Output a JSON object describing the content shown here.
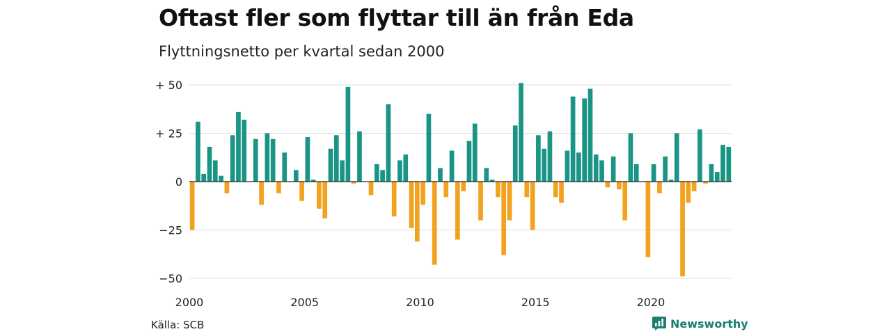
{
  "title": "Oftast fler som flyttar till än från Eda",
  "subtitle": "Flyttningsnetto per kvartal sedan 2000",
  "source": "Källa: SCB",
  "brand": "Newsworthy",
  "colors": {
    "positive": "#1a9585",
    "negative": "#f2a21f",
    "grid": "#dddddd",
    "axis": "#222222"
  },
  "chart_data": {
    "type": "bar",
    "title": "Oftast fler som flyttar till än från Eda",
    "subtitle": "Flyttningsnetto per kvartal sedan 2000",
    "x_start_year": 2000,
    "periods_per_year": 4,
    "x_tick_labels": [
      "2000",
      "2005",
      "2010",
      "2015",
      "2020"
    ],
    "y_ticks": [
      {
        "value": 50,
        "label": "+ 50"
      },
      {
        "value": 25,
        "label": "+ 25"
      },
      {
        "value": 0,
        "label": "0"
      },
      {
        "value": -25,
        "label": "−25"
      },
      {
        "value": -50,
        "label": "−50"
      }
    ],
    "ylim": [
      -52,
      52
    ],
    "grid": true,
    "values": [
      -25,
      31,
      4,
      18,
      11,
      3,
      -6,
      24,
      36,
      32,
      0,
      22,
      -12,
      25,
      22,
      -6,
      15,
      0,
      6,
      -10,
      23,
      1,
      -14,
      -19,
      17,
      24,
      11,
      49,
      -1,
      26,
      0,
      -7,
      9,
      6,
      40,
      -18,
      11,
      14,
      -24,
      -31,
      -12,
      35,
      -43,
      7,
      -8,
      16,
      -30,
      -5,
      21,
      30,
      -20,
      7,
      1,
      -8,
      -38,
      -20,
      29,
      51,
      -8,
      -25,
      24,
      17,
      26,
      -8,
      -11,
      16,
      44,
      15,
      43,
      48,
      14,
      11,
      -3,
      13,
      -4,
      -20,
      25,
      9,
      0,
      -39,
      9,
      -6,
      13,
      1,
      25,
      -49,
      -11,
      -5,
      27,
      -1,
      9,
      5,
      19,
      18
    ]
  }
}
